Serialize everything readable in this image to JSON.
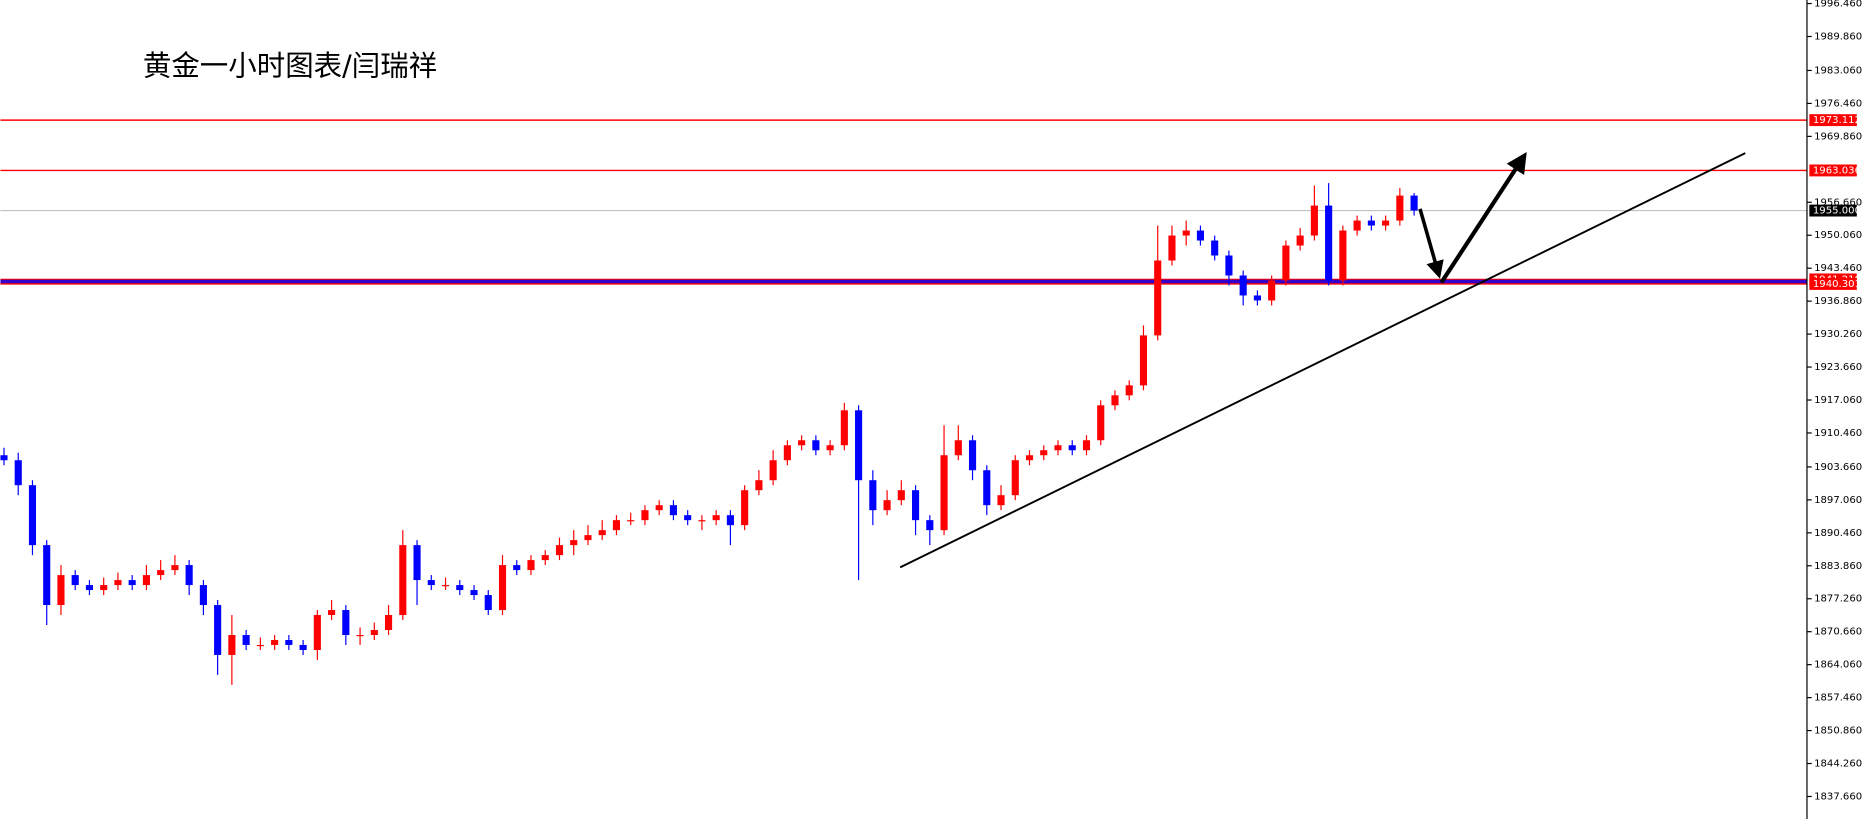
{
  "chart_data": {
    "type": "candlestick",
    "title": "黄金一小时图表/闫瑞祥",
    "up_color": "#ff0000",
    "down_color": "#0000ff",
    "ylim": [
      1833.15,
      1997.17
    ],
    "yticks": [
      {
        "value": 1996.46,
        "label": "1996.460"
      },
      {
        "value": 1989.86,
        "label": "1989.860"
      },
      {
        "value": 1983.06,
        "label": "1983.060"
      },
      {
        "value": 1976.46,
        "label": "1976.460"
      },
      {
        "value": 1969.86,
        "label": "1969.860"
      },
      {
        "value": 1956.66,
        "label": "1956.660"
      },
      {
        "value": 1950.06,
        "label": "1950.060"
      },
      {
        "value": 1943.46,
        "label": "1943.460"
      },
      {
        "value": 1936.86,
        "label": "1936.860"
      },
      {
        "value": 1930.26,
        "label": "1930.260"
      },
      {
        "value": 1923.66,
        "label": "1923.660"
      },
      {
        "value": 1917.06,
        "label": "1917.060"
      },
      {
        "value": 1910.46,
        "label": "1910.460"
      },
      {
        "value": 1903.66,
        "label": "1903.660"
      },
      {
        "value": 1897.06,
        "label": "1897.060"
      },
      {
        "value": 1890.46,
        "label": "1890.460"
      },
      {
        "value": 1883.86,
        "label": "1883.860"
      },
      {
        "value": 1877.26,
        "label": "1877.260"
      },
      {
        "value": 1870.66,
        "label": "1870.660"
      },
      {
        "value": 1864.06,
        "label": "1864.060"
      },
      {
        "value": 1857.46,
        "label": "1857.460"
      },
      {
        "value": 1850.86,
        "label": "1850.860"
      },
      {
        "value": 1844.26,
        "label": "1844.260"
      },
      {
        "value": 1837.66,
        "label": "1837.660"
      }
    ],
    "levels": [
      {
        "value": 1973.112,
        "label": "1973.112",
        "color": "#ff0000"
      },
      {
        "value": 1963.036,
        "label": "1963.036",
        "color": "#ff0000"
      },
      {
        "value": 1955.0,
        "label": "1955.000",
        "color": "#000000"
      },
      {
        "value": 1941.21,
        "label": "1941.210",
        "color": "#ff0000"
      },
      {
        "value": 1940.301,
        "label": "1940.301",
        "color": "#ff0000"
      }
    ],
    "open": [
      1906,
      1905,
      1900,
      1888,
      1876,
      1882,
      1880,
      1879,
      1880,
      1881,
      1880,
      1882,
      1883,
      1884,
      1880,
      1876,
      1866,
      1870,
      1868,
      1868,
      1869,
      1868,
      1867,
      1874,
      1875,
      1870,
      1870,
      1871,
      1874,
      1888,
      1881,
      1880,
      1880,
      1879,
      1878,
      1875,
      1884,
      1883,
      1885,
      1886,
      1888,
      1889,
      1890,
      1891,
      1893,
      1893,
      1895,
      1896,
      1894,
      1893,
      1893,
      1894,
      1892,
      1899,
      1901,
      1905,
      1908,
      1909,
      1907,
      1908,
      1915,
      1901,
      1895,
      1897,
      1899,
      1893,
      1891,
      1906,
      1909,
      1903,
      1896,
      1898,
      1905,
      1906,
      1907,
      1908,
      1907,
      1909,
      1916,
      1918,
      1920,
      1930,
      1945,
      1950,
      1951,
      1949,
      1946,
      1942,
      1938,
      1937,
      1941,
      1948,
      1950,
      1956,
      1941,
      1951,
      1953,
      1952,
      1953,
      1958
    ],
    "high": [
      1907.5,
      1906.5,
      1901,
      1889,
      1884,
      1883,
      1881,
      1881.5,
      1882.5,
      1882,
      1884,
      1885,
      1886,
      1885,
      1881,
      1877,
      1874,
      1871,
      1869.5,
      1870,
      1870,
      1869,
      1875,
      1877,
      1876,
      1871.5,
      1872.5,
      1876,
      1891,
      1889,
      1882,
      1881.5,
      1881,
      1880,
      1879,
      1886,
      1885,
      1886,
      1887,
      1889.5,
      1891,
      1892,
      1893,
      1894,
      1894.5,
      1896,
      1897,
      1897,
      1895,
      1894,
      1895,
      1895,
      1900,
      1903,
      1907,
      1909,
      1910,
      1910,
      1909,
      1916.5,
      1916,
      1903,
      1899,
      1901,
      1900,
      1894,
      1912,
      1912,
      1910,
      1904,
      1900,
      1906,
      1907,
      1908,
      1909,
      1909,
      1910,
      1917,
      1919,
      1921,
      1932,
      1952,
      1952,
      1953,
      1952,
      1950,
      1947,
      1943,
      1939,
      1942,
      1949,
      1951.5,
      1960,
      1960.5,
      1952,
      1954,
      1954,
      1954,
      1959.5,
      1958.5
    ],
    "low": [
      1904,
      1898,
      1886,
      1872,
      1874,
      1879,
      1878,
      1878,
      1879,
      1879,
      1879,
      1881,
      1882,
      1878,
      1874,
      1862,
      1860,
      1867,
      1867,
      1867,
      1867,
      1866,
      1865,
      1873,
      1868,
      1868,
      1869,
      1870,
      1873,
      1876,
      1879,
      1879,
      1878,
      1877,
      1874,
      1874,
      1882,
      1882,
      1884,
      1885,
      1886,
      1888,
      1889,
      1890,
      1892,
      1892,
      1894,
      1893,
      1892,
      1891,
      1892,
      1888,
      1891,
      1898,
      1900,
      1904,
      1907,
      1906,
      1906,
      1907,
      1881,
      1892,
      1894,
      1896,
      1890,
      1888,
      1890,
      1905,
      1901,
      1894,
      1895,
      1897,
      1904,
      1905,
      1906,
      1906,
      1906,
      1908,
      1915,
      1917,
      1919,
      1929,
      1944,
      1948,
      1948,
      1945,
      1940,
      1936,
      1936,
      1936,
      1940,
      1947,
      1949,
      1940,
      1940,
      1950,
      1951,
      1951,
      1952,
      1954
    ],
    "close": [
      1905,
      1900,
      1888,
      1876,
      1882,
      1880,
      1879,
      1880,
      1881,
      1880,
      1882,
      1883,
      1884,
      1880,
      1876,
      1866,
      1870,
      1868,
      1868,
      1869,
      1868,
      1867,
      1874,
      1875,
      1870,
      1870,
      1871,
      1874,
      1888,
      1881,
      1880,
      1880,
      1879,
      1878,
      1875,
      1884,
      1883,
      1885,
      1886,
      1888,
      1889,
      1890,
      1891,
      1893,
      1893,
      1895,
      1896,
      1894,
      1893,
      1893,
      1894,
      1892,
      1899,
      1901,
      1905,
      1908,
      1909,
      1907,
      1908,
      1915,
      1901,
      1895,
      1897,
      1899,
      1893,
      1891,
      1906,
      1909,
      1903,
      1896,
      1898,
      1905,
      1906,
      1907,
      1908,
      1907,
      1909,
      1916,
      1918,
      1920,
      1930,
      1945,
      1950,
      1951,
      1949,
      1946,
      1942,
      1938,
      1937,
      1941,
      1948,
      1950,
      1956,
      1941,
      1951,
      1953,
      1952,
      1953,
      1958,
      1955
    ]
  }
}
